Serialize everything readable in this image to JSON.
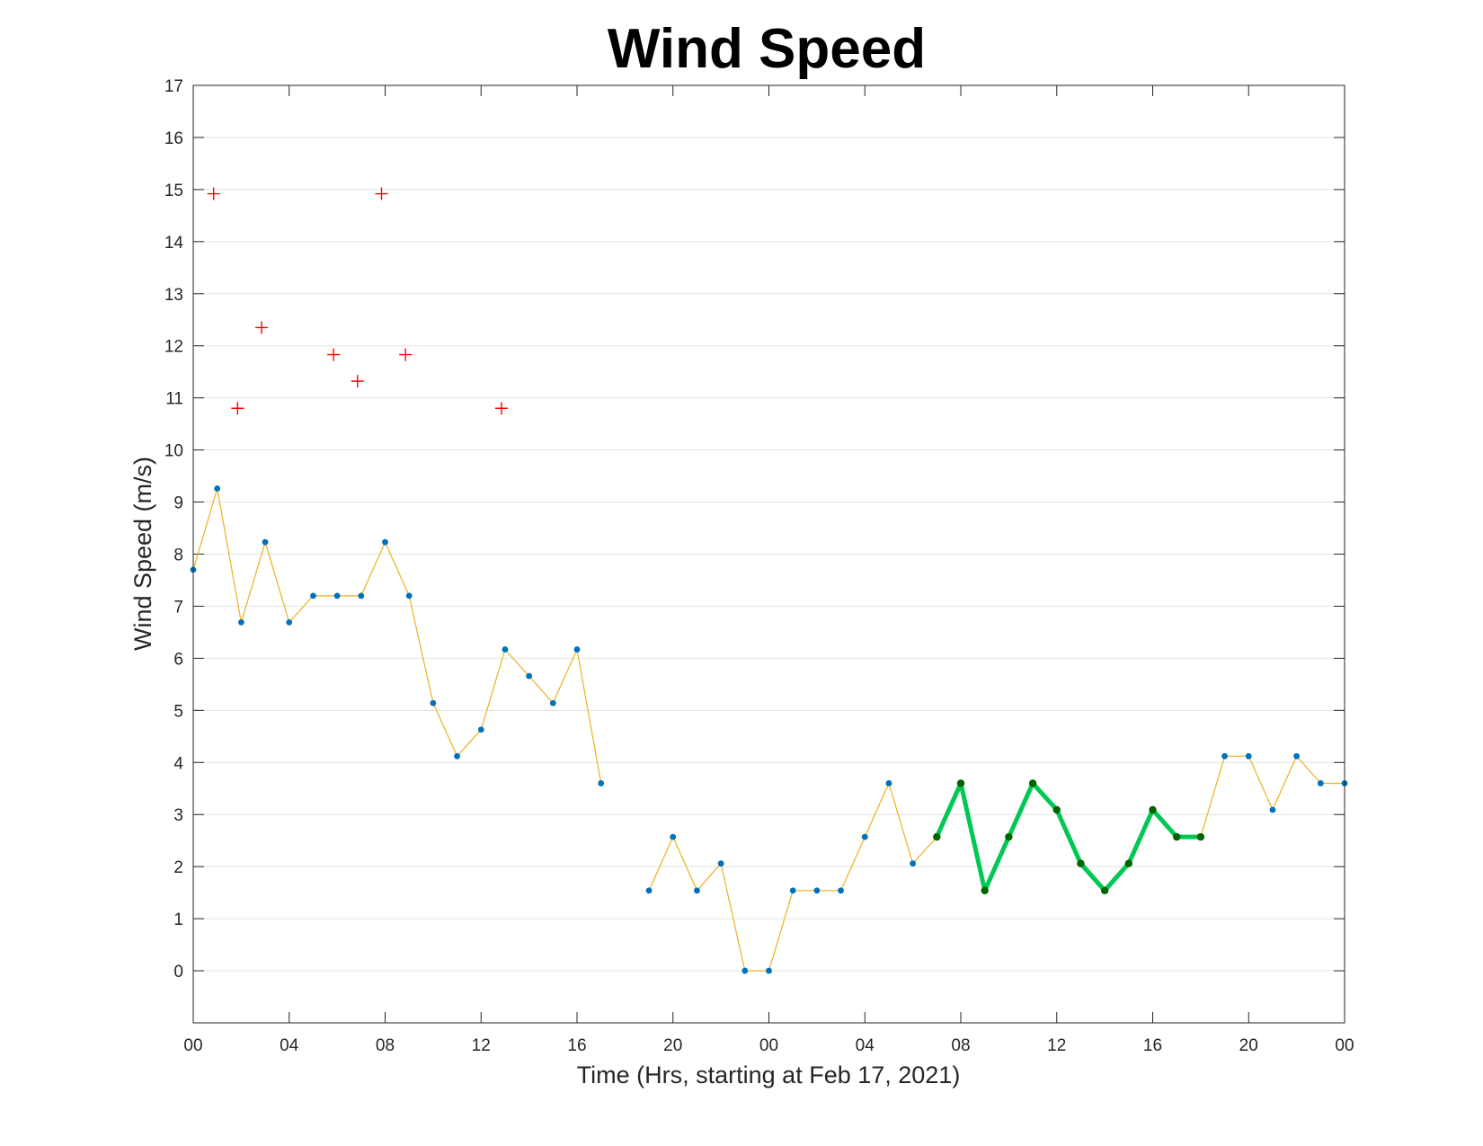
{
  "chart_data": {
    "type": "line",
    "title": "Wind Speed",
    "xlabel": "Time (Hrs, starting at Feb 17, 2021)",
    "ylabel": "Wind Speed (m/s)",
    "ylim": [
      -1,
      17
    ],
    "xlim": [
      0,
      48
    ],
    "grid": "horizontal",
    "x_tick_values": [
      0,
      4,
      8,
      12,
      16,
      20,
      24,
      28,
      32,
      36,
      40,
      44,
      48
    ],
    "x_tick_labels": [
      "00",
      "04",
      "08",
      "12",
      "16",
      "20",
      "00",
      "04",
      "08",
      "12",
      "16",
      "20",
      "00"
    ],
    "y_tick_values": [
      0,
      1,
      2,
      3,
      4,
      5,
      6,
      7,
      8,
      9,
      10,
      11,
      12,
      13,
      14,
      15,
      16,
      17
    ],
    "y_tick_labels": [
      "0",
      "1",
      "2",
      "3",
      "4",
      "5",
      "6",
      "7",
      "8",
      "9",
      "10",
      "11",
      "12",
      "13",
      "14",
      "15",
      "16",
      "17"
    ],
    "series": [
      {
        "role": "wind-speed",
        "line_color": "#EDB120",
        "marker_color": "#0072BD",
        "x": [
          0,
          1,
          2,
          3,
          4,
          5,
          6,
          7,
          8,
          9,
          10,
          11,
          12,
          13,
          14,
          15,
          16,
          17,
          null,
          19,
          20,
          21,
          22,
          23,
          24,
          25,
          26,
          27,
          28,
          29,
          30,
          31,
          32,
          33,
          34,
          35,
          36,
          37,
          38,
          39,
          40,
          41,
          42,
          43,
          44,
          45,
          46,
          47,
          48
        ],
        "y": [
          7.7,
          9.26,
          6.69,
          8.23,
          6.69,
          7.2,
          7.2,
          7.2,
          8.23,
          7.2,
          5.14,
          4.12,
          4.63,
          6.17,
          5.66,
          5.14,
          6.17,
          3.6,
          null,
          1.54,
          2.57,
          1.54,
          2.06,
          0,
          0,
          1.54,
          1.54,
          1.54,
          2.57,
          3.6,
          2.06,
          2.57,
          3.6,
          1.54,
          2.57,
          3.6,
          3.09,
          2.06,
          1.54,
          2.06,
          3.09,
          2.57,
          2.57,
          4.12,
          4.12,
          3.09,
          4.12,
          3.6,
          3.6
        ]
      },
      {
        "role": "gusts",
        "marker": "plus",
        "color": "#FF0000",
        "x": [
          0.85,
          1.85,
          2.85,
          5.85,
          6.85,
          7.85,
          8.85,
          12.85
        ],
        "y": [
          14.92,
          10.8,
          12.35,
          11.83,
          11.32,
          14.92,
          11.83,
          10.8
        ]
      },
      {
        "role": "highlighted-segment",
        "line_color": "#00C853",
        "marker_color": "#006400",
        "x": [
          31,
          32,
          33,
          34,
          35,
          36,
          37,
          38,
          39,
          40,
          41,
          42
        ],
        "y": [
          2.57,
          3.6,
          1.54,
          2.57,
          3.6,
          3.09,
          2.06,
          1.54,
          2.06,
          3.09,
          2.57,
          2.57
        ]
      }
    ]
  }
}
